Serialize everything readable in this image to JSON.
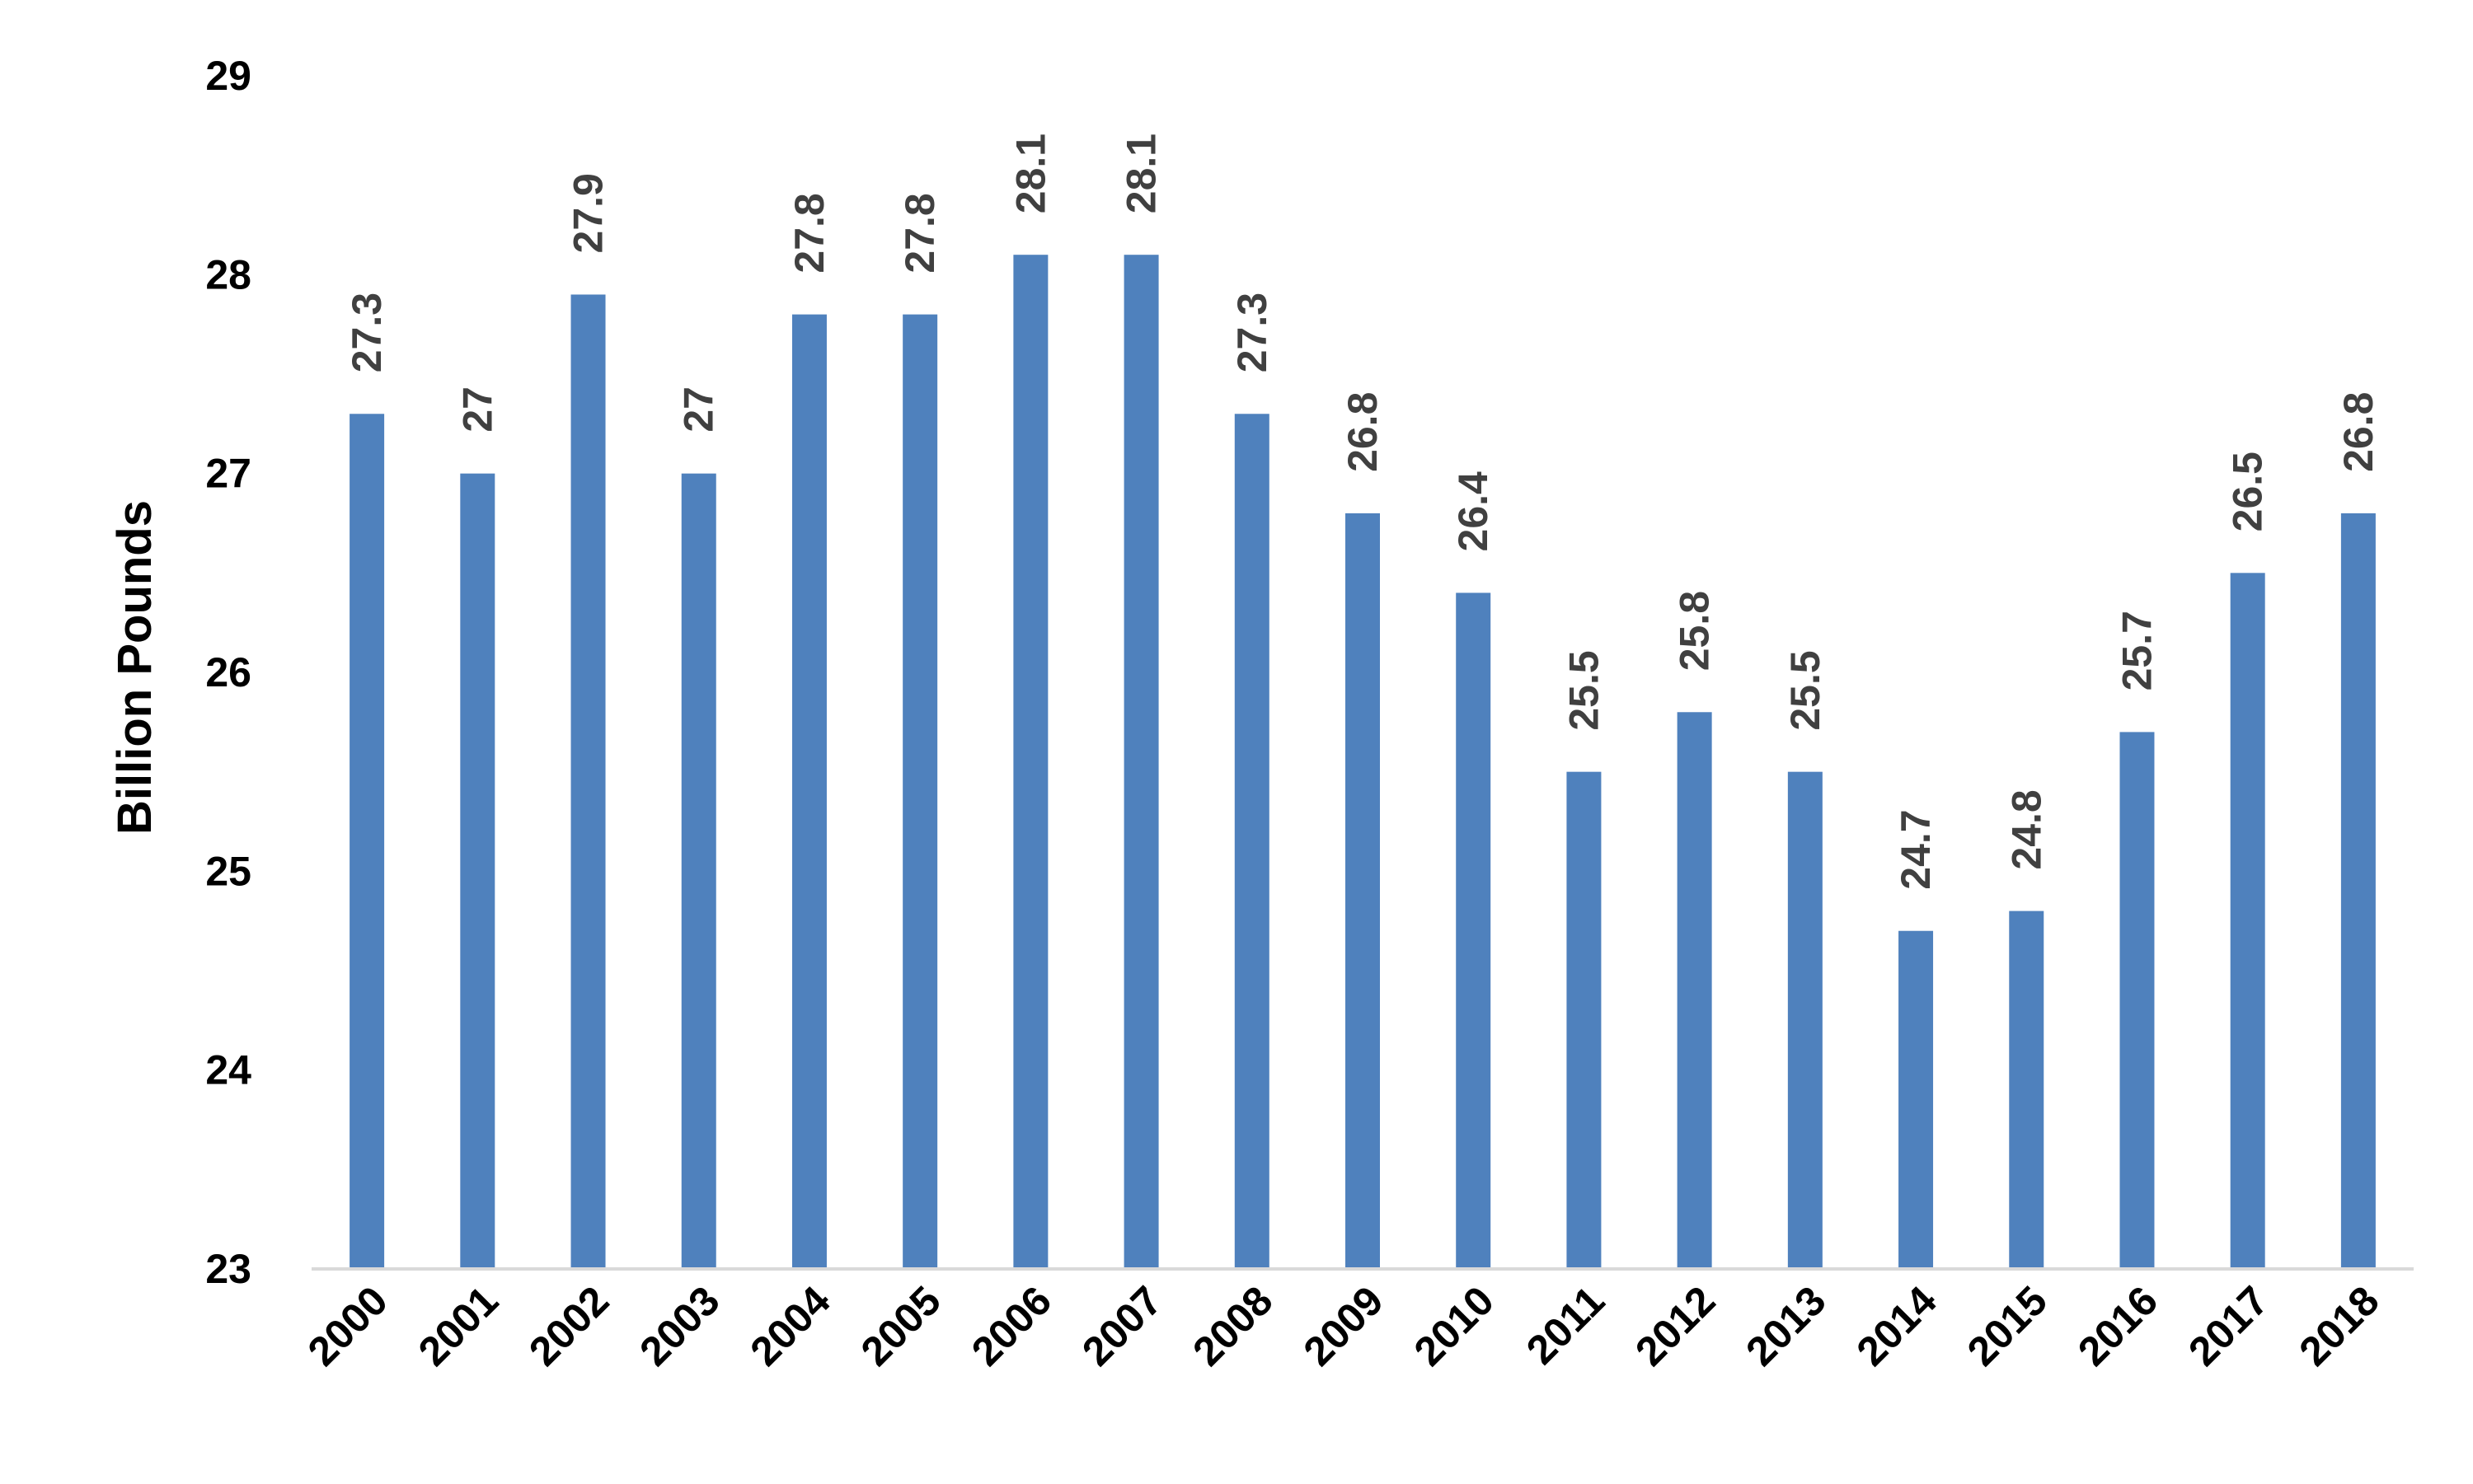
{
  "chart_data": {
    "type": "bar",
    "title": "",
    "xlabel": "",
    "ylabel": "Billion Pounds",
    "ylim": [
      23,
      29
    ],
    "yticks": [
      23,
      24,
      25,
      26,
      27,
      28,
      29
    ],
    "grid": false,
    "legend": "none",
    "bar_color": "#4f81bd",
    "axis_color": "#d9d9d9",
    "data_label_color": "#404040",
    "categories": [
      "2000",
      "2001",
      "2002",
      "2003",
      "2004",
      "2005",
      "2006",
      "2007",
      "2008",
      "2009",
      "2010",
      "2011",
      "2012",
      "2013",
      "2014",
      "2015",
      "2016",
      "2017",
      "2018"
    ],
    "values": [
      27.3,
      27,
      27.9,
      27,
      27.8,
      27.8,
      28.1,
      28.1,
      27.3,
      26.8,
      26.4,
      25.5,
      25.8,
      25.5,
      24.7,
      24.8,
      25.7,
      26.5,
      26.8
    ],
    "data_labels": [
      "27.3",
      "27",
      "27.9",
      "27",
      "27.8",
      "27.8",
      "28.1",
      "28.1",
      "27.3",
      "26.8",
      "26.4",
      "25.5",
      "25.8",
      "25.5",
      "24.7",
      "24.8",
      "25.7",
      "26.5",
      "26.8"
    ]
  }
}
